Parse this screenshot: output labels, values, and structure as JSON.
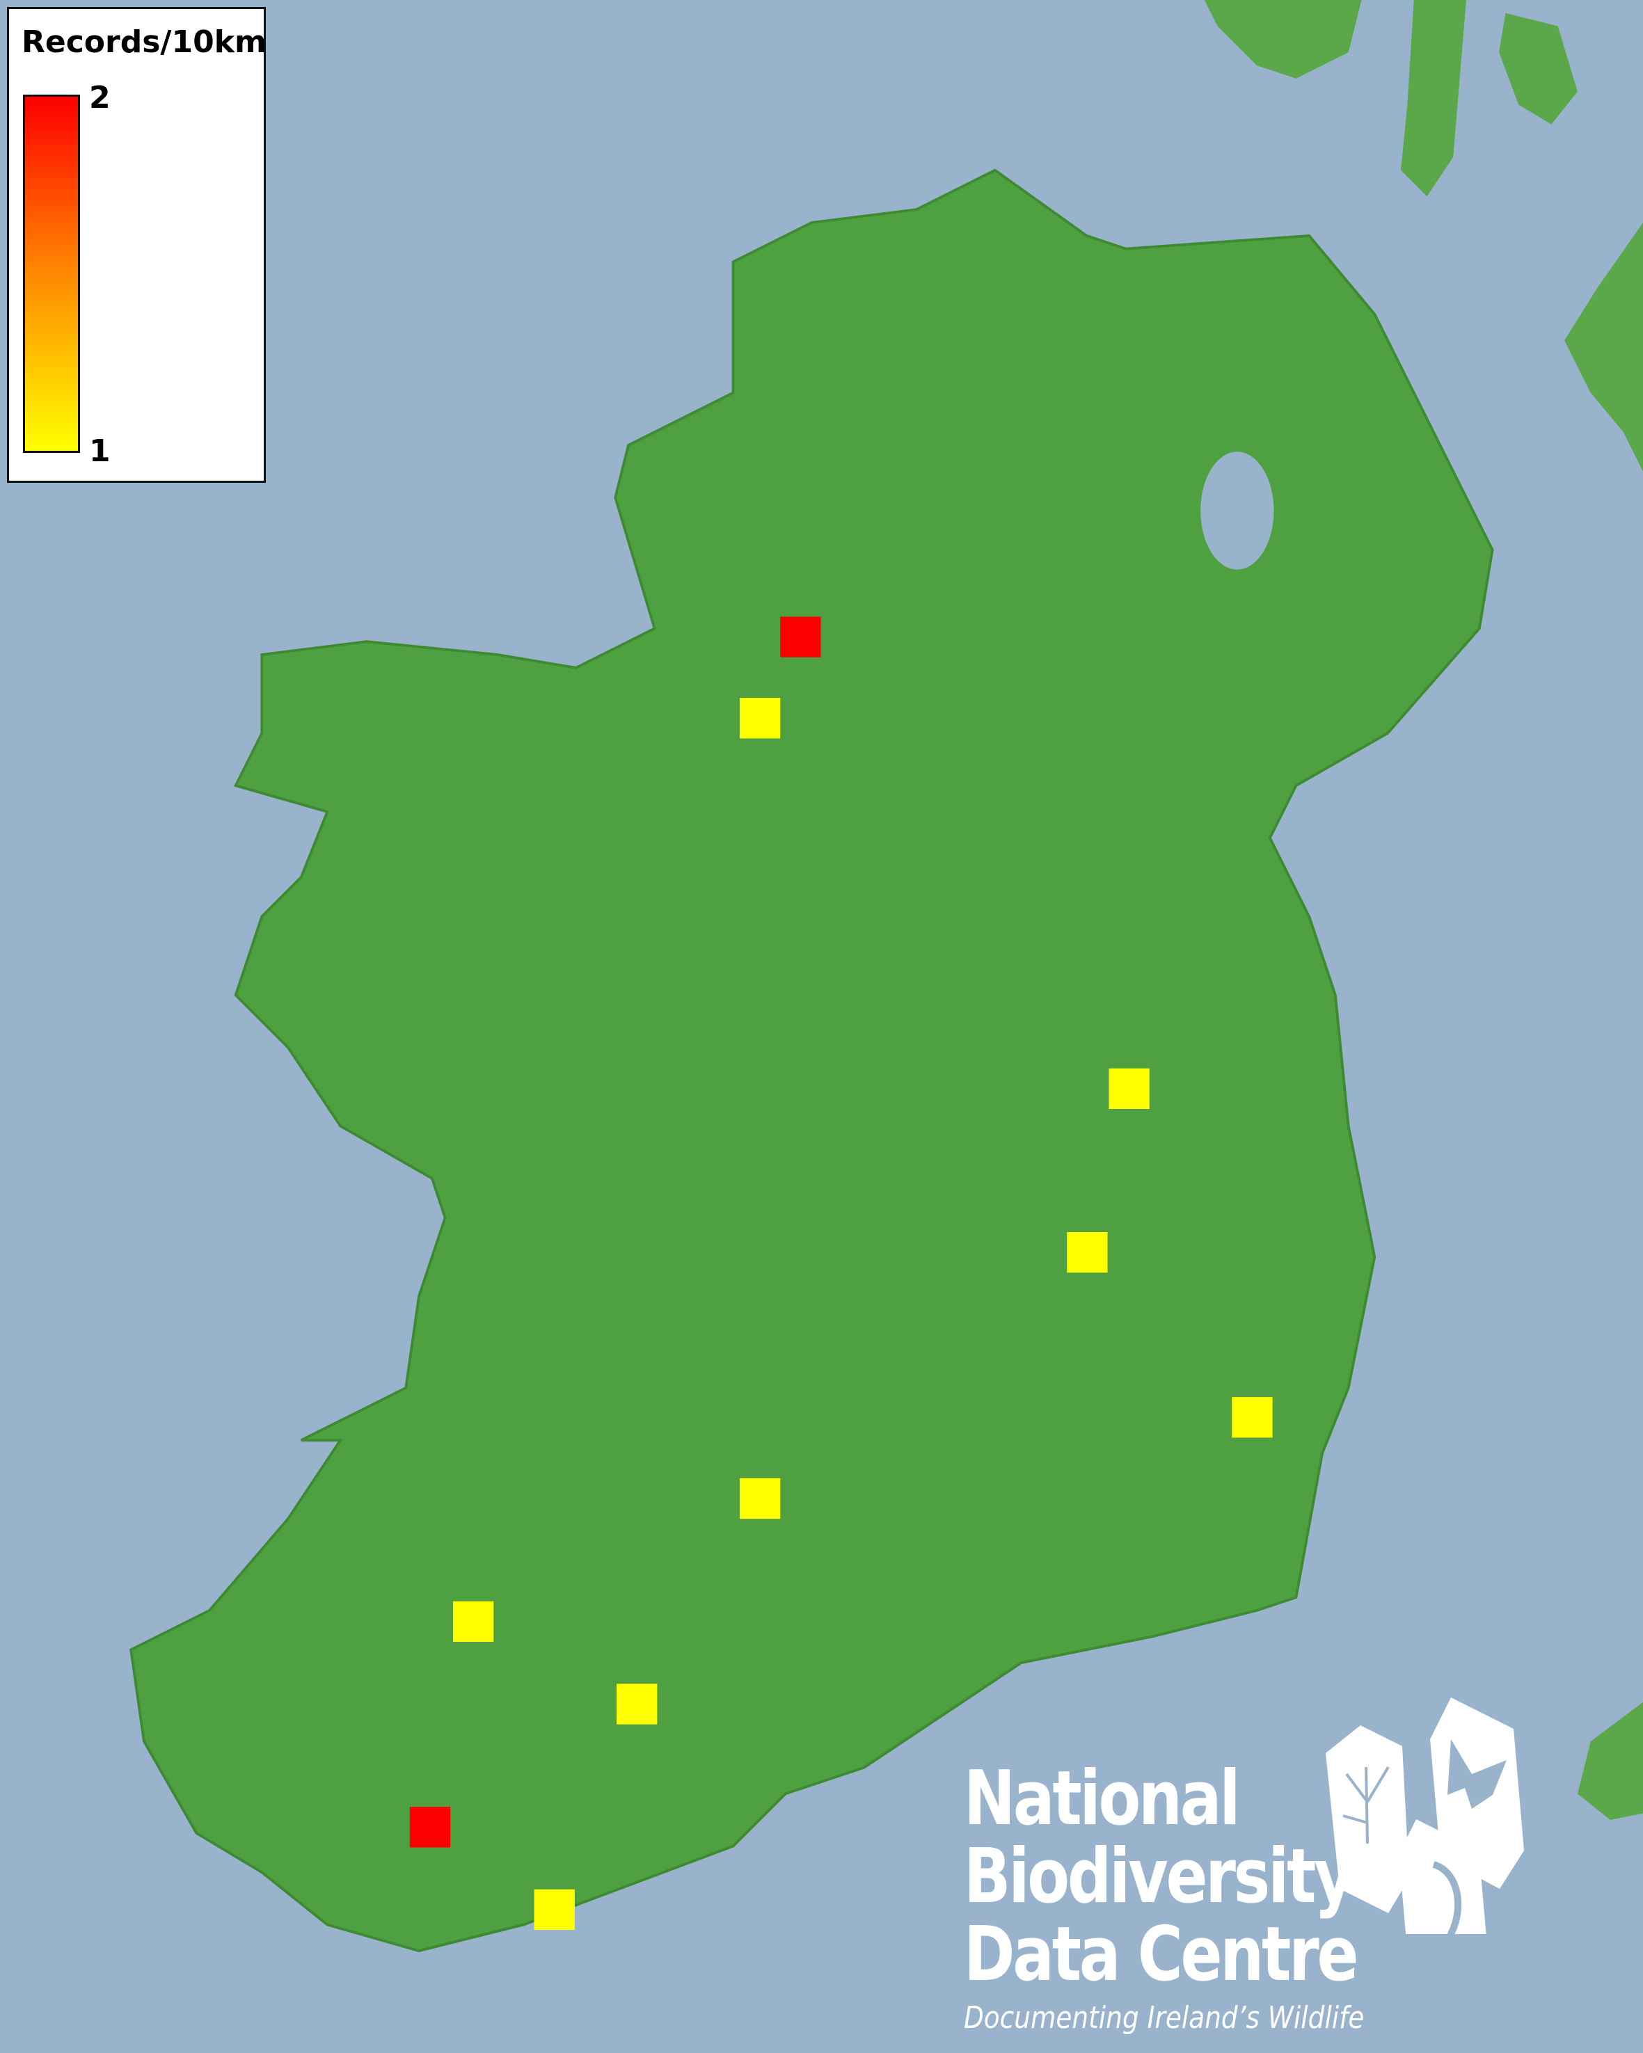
{
  "legend": {
    "title": "Records/10km",
    "max_label": "2",
    "min_label": "1",
    "color_max": "#ff0000",
    "color_mid": "#ff8800",
    "color_min": "#ffff00"
  },
  "map": {
    "sea_color": "#9ab3cc",
    "land_color": "#4fa040",
    "records": [
      {
        "count": 2
      },
      {
        "count": 1
      },
      {
        "count": 1
      },
      {
        "count": 1
      },
      {
        "count": 1
      },
      {
        "count": 1
      },
      {
        "count": 1
      },
      {
        "count": 1
      },
      {
        "count": 2
      },
      {
        "count": 1
      }
    ]
  },
  "logo": {
    "line1": "National",
    "line2": "Biodiversity",
    "line3": "Data Centre",
    "tagline": "Documenting Ireland’s Wildlife",
    "icons": [
      "tree-icon",
      "butterfly-icon",
      "seahorse-icon"
    ]
  }
}
